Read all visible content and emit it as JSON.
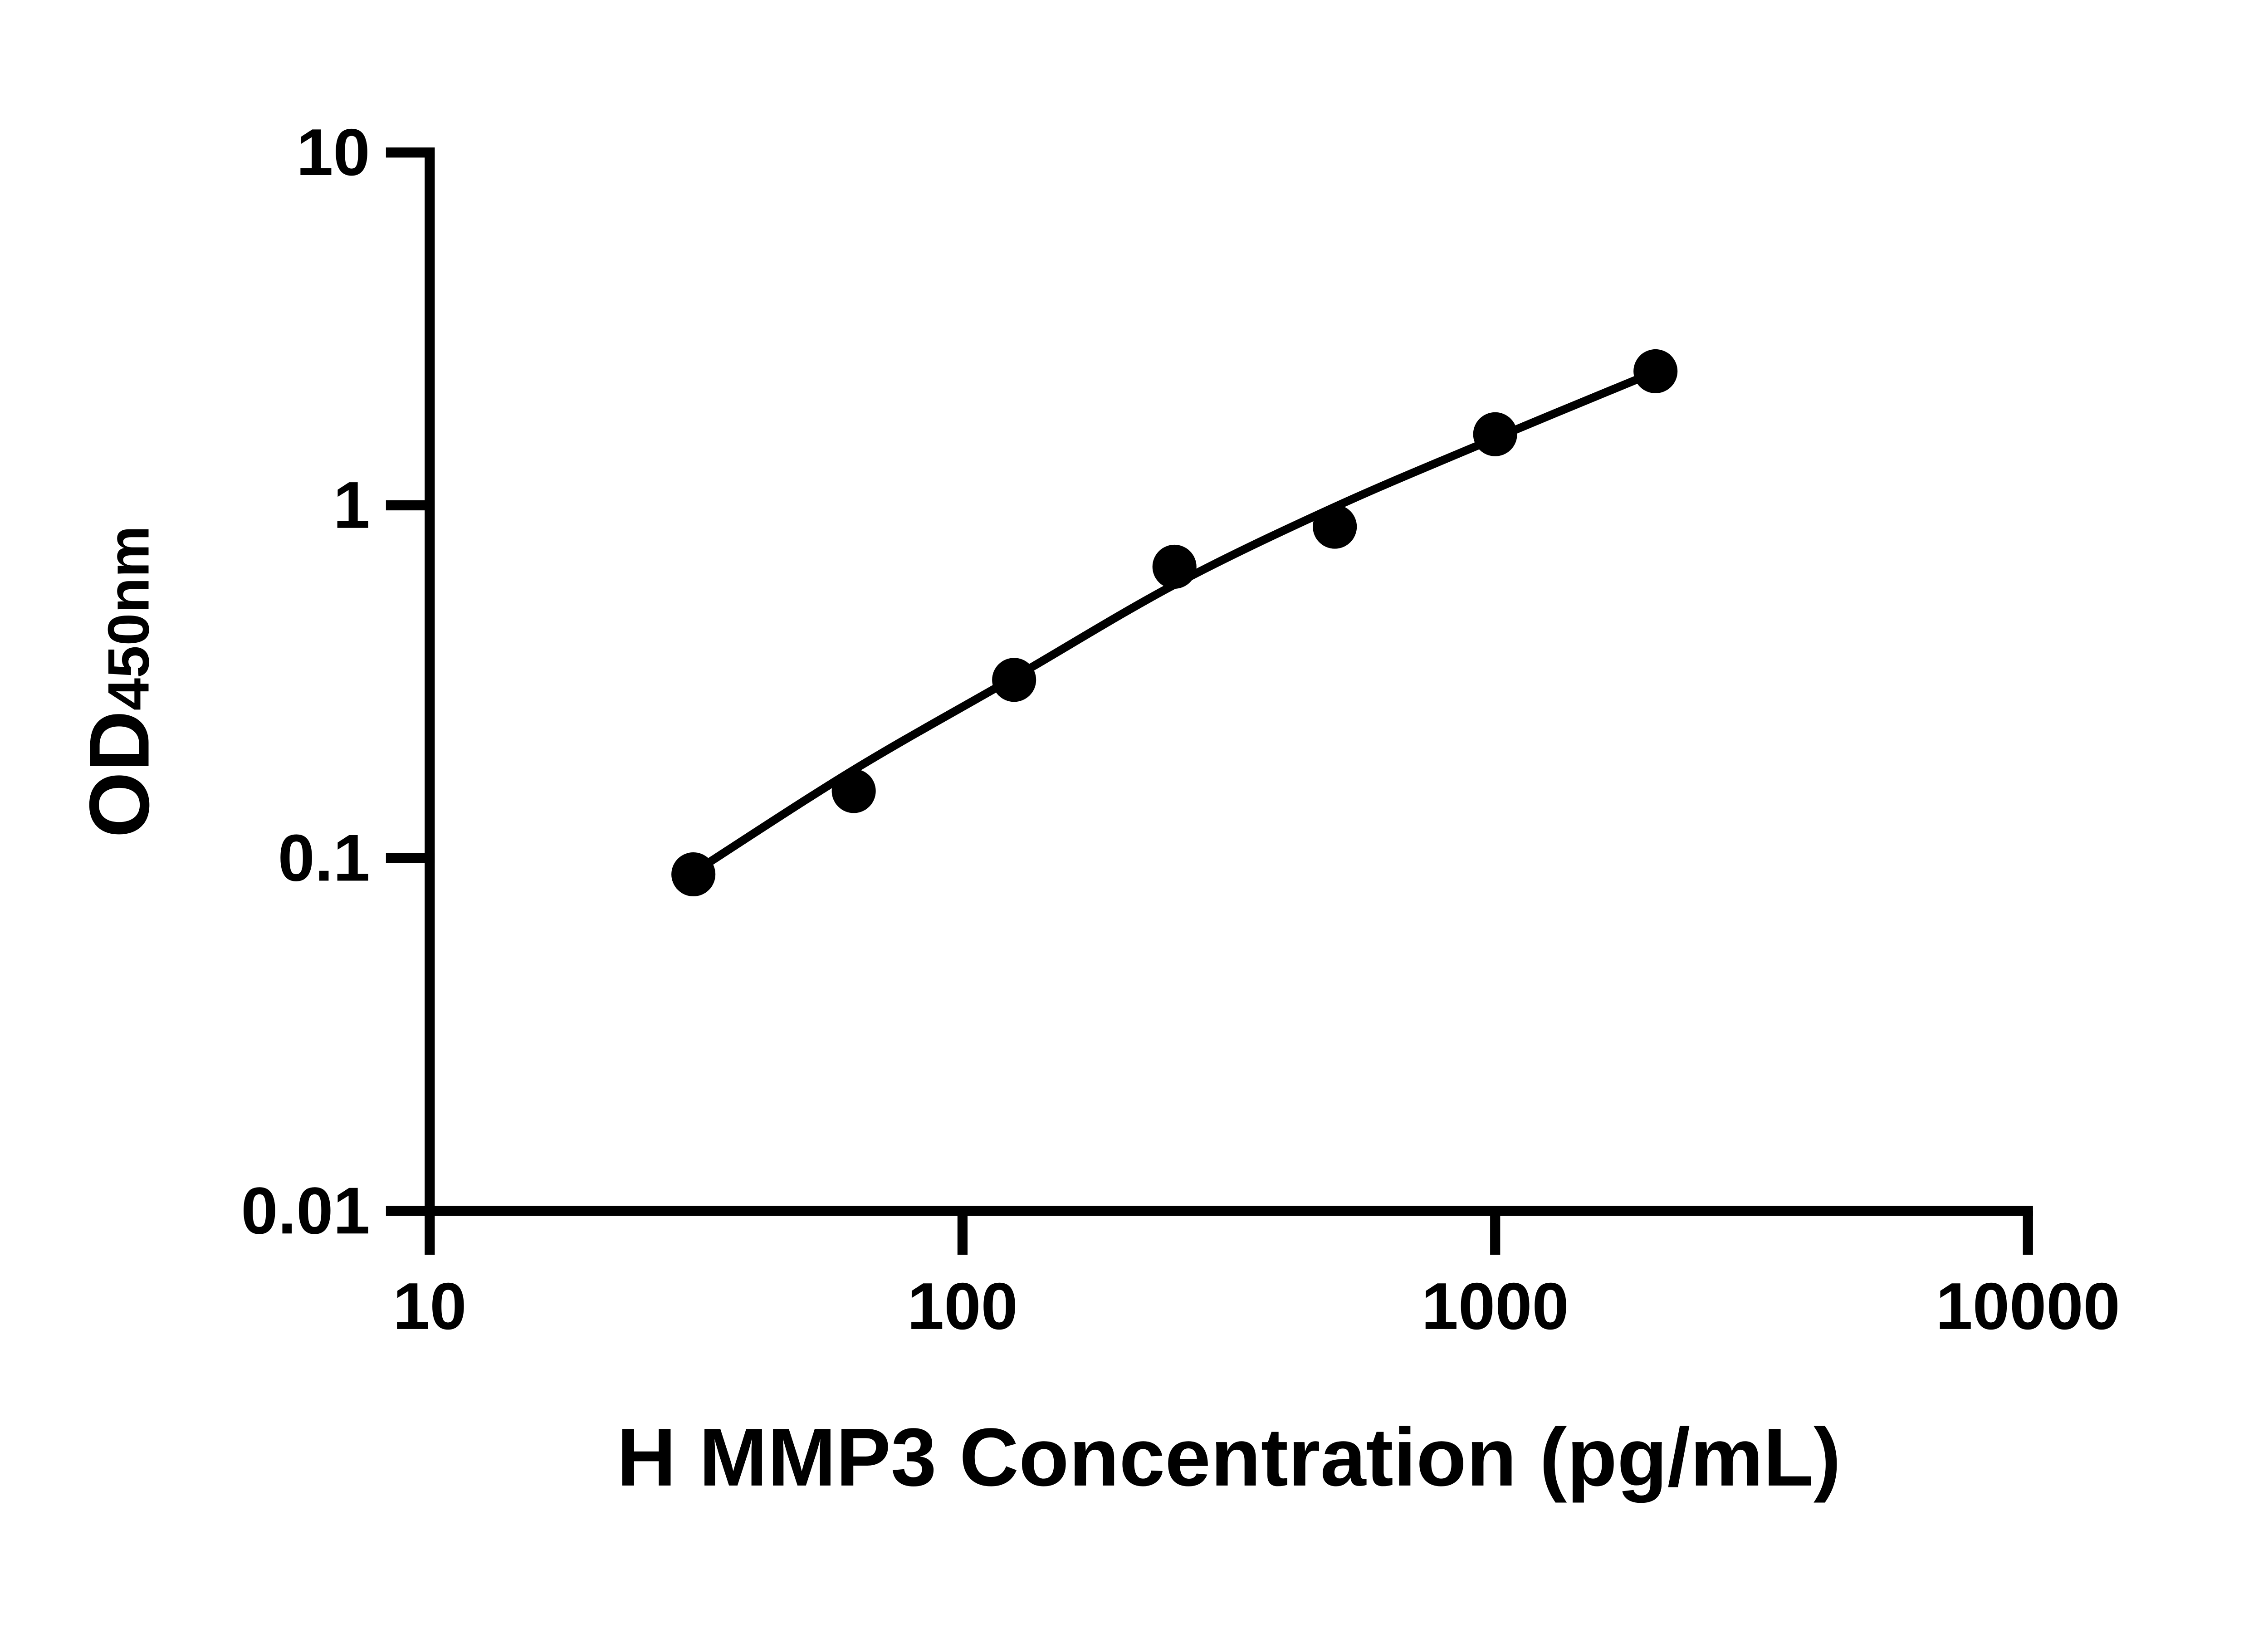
{
  "figure": {
    "background_color": "#ffffff",
    "ink_color": "#000000"
  },
  "chart_data": {
    "type": "scatter",
    "title": "",
    "xlabel": "H MMP3 Concentration (pg/mL)",
    "ylabel_main": "OD",
    "ylabel_sub": "450nm",
    "x_scale": "log",
    "y_scale": "log",
    "xlim": [
      10,
      10000
    ],
    "ylim": [
      0.01,
      10
    ],
    "x_ticks": [
      10,
      100,
      1000,
      10000
    ],
    "x_tick_labels": [
      "10",
      "100",
      "1000",
      "10000"
    ],
    "y_ticks": [
      10,
      1,
      0.1,
      0.01
    ],
    "y_tick_labels": [
      "10",
      "1",
      "0.1",
      "0.01"
    ],
    "grid": false,
    "legend": null,
    "series": [
      {
        "name": "standard-points",
        "type": "scatter",
        "marker": "circle",
        "color": "#000000",
        "x": [
          31.25,
          62.5,
          125,
          250,
          500,
          1000,
          2000
        ],
        "y": [
          0.09,
          0.155,
          0.32,
          0.67,
          0.87,
          1.59,
          2.4
        ]
      },
      {
        "name": "fit-curve",
        "type": "line",
        "color": "#000000",
        "x": [
          31.25,
          62.5,
          125,
          250,
          500,
          1000,
          2000
        ],
        "y": [
          0.091,
          0.178,
          0.325,
          0.596,
          0.99,
          1.55,
          2.39
        ]
      }
    ]
  }
}
